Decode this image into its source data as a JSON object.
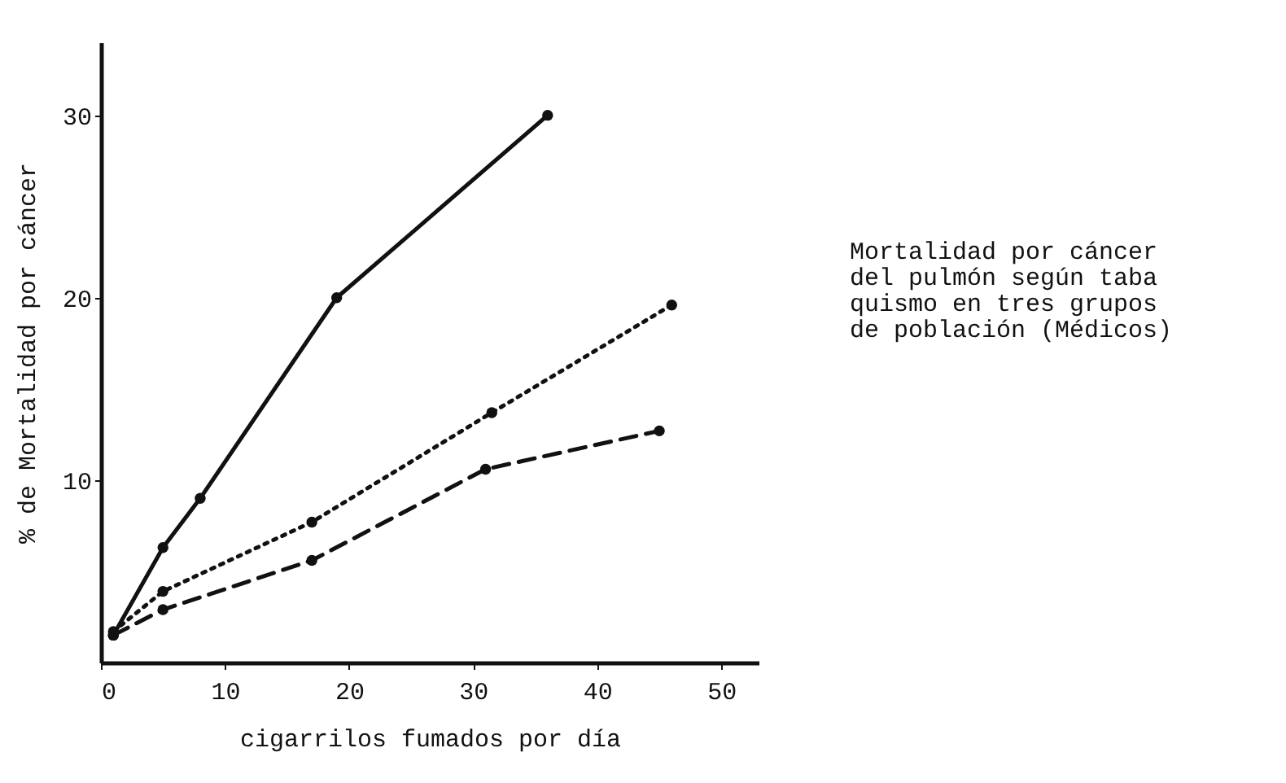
{
  "chart_data": {
    "type": "line",
    "xlabel": "cigarrilos fumados por día",
    "ylabel": "% de Mortalidad por cáncer",
    "annotations": [
      "Mortalidad por cáncer\ndel pulmón según taba\nquismo en tres grupos\nde población (Médicos)"
    ],
    "xlim": [
      0,
      53
    ],
    "ylim": [
      0,
      34
    ],
    "xticks": [
      0,
      10,
      20,
      30,
      40,
      50
    ],
    "yticks": [
      10,
      20,
      30
    ],
    "marker": "circle",
    "grid": false,
    "series": [
      {
        "color": "#111111",
        "line_style": "solid",
        "x": [
          1,
          5,
          8,
          19,
          36
        ],
        "values": [
          1.5,
          6.3,
          9,
          20,
          30
        ]
      },
      {
        "color": "#111111",
        "line_style": "dotted",
        "x": [
          1,
          5,
          17,
          31.5,
          46
        ],
        "values": [
          1.7,
          3.9,
          7.7,
          13.7,
          19.6
        ]
      },
      {
        "color": "#111111",
        "line_style": "dashed",
        "x": [
          1,
          5,
          17,
          31,
          45
        ],
        "values": [
          1.5,
          2.9,
          5.6,
          10.6,
          12.7
        ]
      }
    ]
  }
}
